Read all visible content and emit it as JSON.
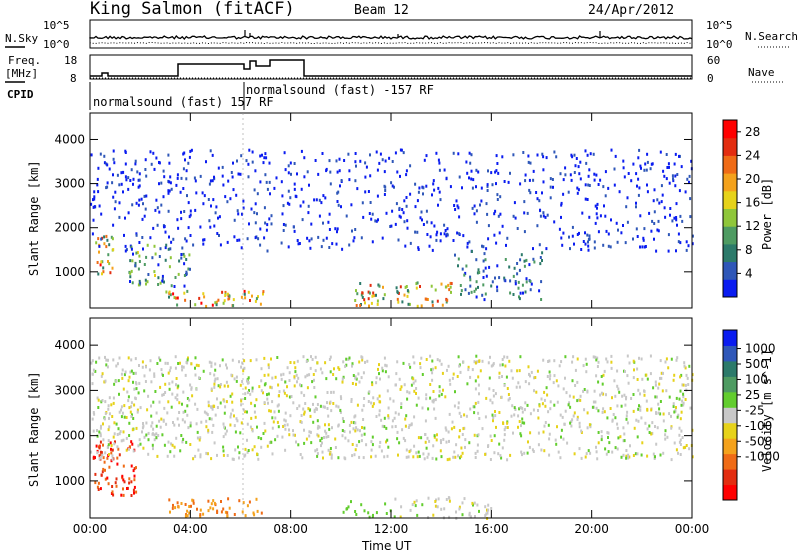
{
  "header": {
    "station": "King Salmon (fitACF)",
    "beam": "Beam 12",
    "date": "24/Apr/2012"
  },
  "top_panels": {
    "nsky_label": "N.Sky",
    "nsearch_label": "N.Search",
    "noise_ticks": [
      "10^5",
      "10^0"
    ],
    "freq_label_1": "Freq.",
    "freq_label_2": "[MHz]",
    "freq_ticks": [
      "18",
      "8"
    ],
    "nave_label": "Nave",
    "nave_ticks": [
      "60",
      "0"
    ],
    "cpid_label": "CPID",
    "cpid_1": "normalsound (fast) 157 RF",
    "cpid_2": "normalsound (fast) -157 RF"
  },
  "colors": {
    "power": [
      "#0a1cf0",
      "#2f57b8",
      "#2c7a6a",
      "#4e9b62",
      "#8fc63a",
      "#e6d21a",
      "#f4a21c",
      "#ef6b16",
      "#e32d10",
      "#ff0000"
    ],
    "velocity": [
      "#0a1cf0",
      "#2f57b8",
      "#2c7a6a",
      "#4e9b62",
      "#62cd2e",
      "#c8c8c8",
      "#e6d21a",
      "#f4a21c",
      "#ef6b16",
      "#e32d10",
      "#ff0000"
    ]
  },
  "chart_data": [
    {
      "type": "heatmap",
      "panel": "power",
      "xlabel": "Time UT",
      "ylabel": "Slant Range [km]",
      "xlim": [
        "00:00",
        "24:00"
      ],
      "ylim": [
        180,
        4600
      ],
      "x_ticks": [
        "00:00",
        "04:00",
        "08:00",
        "12:00",
        "16:00",
        "20:00",
        "00:00"
      ],
      "y_ticks": [
        1000,
        2000,
        3000,
        4000
      ],
      "colorbar_label": "Power [dB]",
      "colorbar_ticks": [
        4,
        8,
        12,
        16,
        20,
        24,
        28
      ],
      "colorbar_range": [
        0,
        30
      ],
      "scatter_regions": [
        {
          "t0": 0.1,
          "t1": 0.9,
          "r0": 900,
          "r1": 1900,
          "level": 0.75
        },
        {
          "t0": 1.5,
          "t1": 4.0,
          "r0": 700,
          "r1": 1700,
          "level": 0.55
        },
        {
          "t0": 3.0,
          "t1": 7.0,
          "r0": 250,
          "r1": 600,
          "level": 0.8
        },
        {
          "t0": 10.5,
          "t1": 14.5,
          "r0": 250,
          "r1": 800,
          "level": 0.7
        },
        {
          "t0": 14.5,
          "t1": 18.0,
          "r0": 400,
          "r1": 1500,
          "level": 0.4
        },
        {
          "t0": 0.0,
          "t1": 24.0,
          "r0": 1500,
          "r1": 3800,
          "level": 0.15
        }
      ]
    },
    {
      "type": "heatmap",
      "panel": "velocity",
      "xlabel": "Time UT",
      "ylabel": "Slant Range [km]",
      "xlim": [
        "00:00",
        "24:00"
      ],
      "ylim": [
        180,
        4600
      ],
      "x_ticks": [
        "00:00",
        "04:00",
        "08:00",
        "12:00",
        "16:00",
        "20:00",
        "00:00"
      ],
      "y_ticks": [
        1000,
        2000,
        3000,
        4000
      ],
      "colorbar_label": "Velocity [m s^-1]",
      "colorbar_ticks": [
        "1000",
        "500",
        "100",
        "25",
        "-25",
        "-100",
        "-500",
        "-1000"
      ],
      "scatter_regions": [
        {
          "t0": 0.1,
          "t1": 1.8,
          "r0": 700,
          "r1": 1900,
          "level": 0.9
        },
        {
          "t0": 3.0,
          "t1": 7.0,
          "r0": 250,
          "r1": 650,
          "level": 0.75
        },
        {
          "t0": 10.0,
          "t1": 12.0,
          "r0": 200,
          "r1": 600,
          "level": 0.35
        },
        {
          "t0": 12.0,
          "t1": 16.0,
          "r0": 200,
          "r1": 700,
          "level": 0.5
        },
        {
          "t0": 0.0,
          "t1": 24.0,
          "r0": 1500,
          "r1": 3800,
          "level": 0.5
        }
      ]
    }
  ]
}
